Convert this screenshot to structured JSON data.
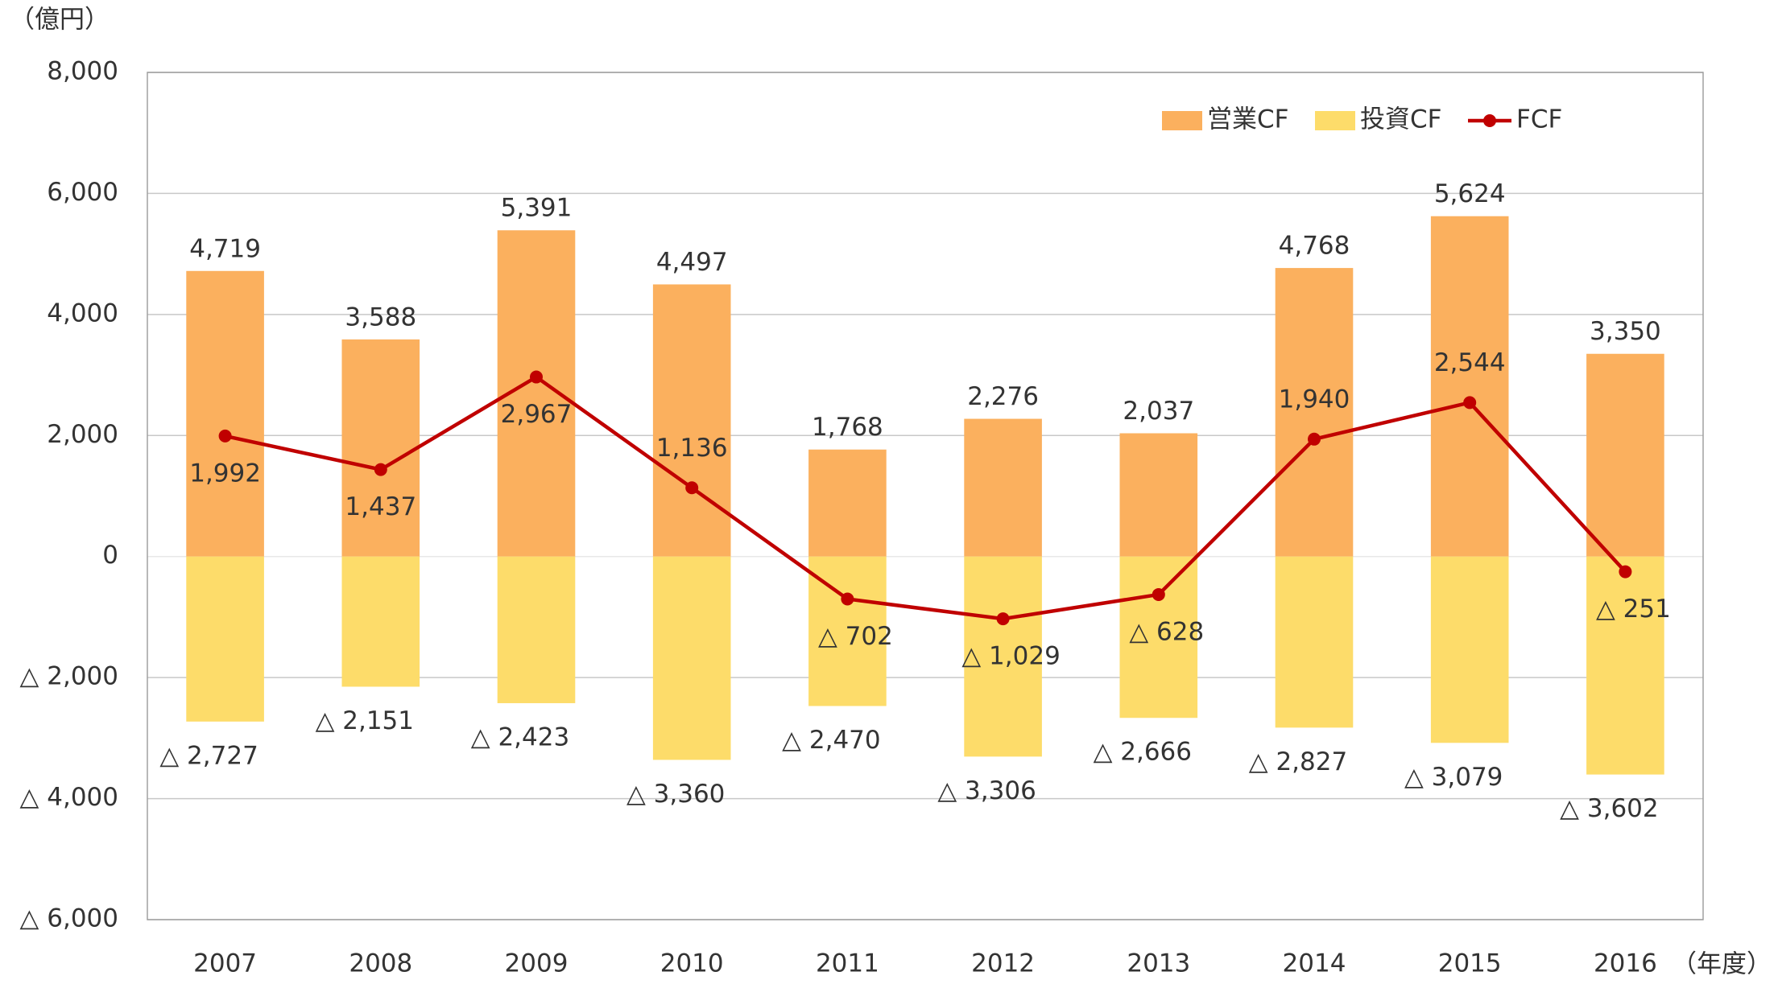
{
  "chart_data": {
    "type": "bar",
    "stacked": true,
    "y_label": "（億円）",
    "x_label": "（年度）",
    "categories": [
      "2007",
      "2008",
      "2009",
      "2010",
      "2011",
      "2012",
      "2013",
      "2014",
      "2015",
      "2016"
    ],
    "series": [
      {
        "name": "営業CF",
        "color": "#fbb05e",
        "type": "bar",
        "values": [
          4719,
          3588,
          5391,
          4497,
          1768,
          2276,
          2037,
          4768,
          5624,
          3350
        ],
        "value_labels": [
          "4,719",
          "3,588",
          "5,391",
          "4,497",
          "1,768",
          "2,276",
          "2,037",
          "4,768",
          "5,624",
          "3,350"
        ]
      },
      {
        "name": "投資CF",
        "color": "#fddc6a",
        "type": "bar",
        "values": [
          -2727,
          -2151,
          -2423,
          -3360,
          -2470,
          -3306,
          -2666,
          -2827,
          -3079,
          -3602
        ],
        "value_labels": [
          "△ 2,727",
          "△ 2,151",
          "△ 2,423",
          "△ 3,360",
          "△ 2,470",
          "△ 3,306",
          "△ 2,666",
          "△ 2,827",
          "△ 3,079",
          "△ 3,602"
        ]
      },
      {
        "name": "FCF",
        "color": "#c00000",
        "type": "line",
        "values": [
          1992,
          1437,
          2967,
          1136,
          -702,
          -1029,
          -628,
          1940,
          2544,
          -251
        ],
        "value_labels": [
          "1,992",
          "1,437",
          "2,967",
          "1,136",
          "△ 702",
          "△ 1,029",
          "△ 628",
          "1,940",
          "2,544",
          "△ 251"
        ]
      }
    ],
    "ylim": [
      -6000,
      8000
    ],
    "yticks": [
      {
        "value": -6000,
        "label": "△ 6,000"
      },
      {
        "value": -4000,
        "label": "△ 4,000"
      },
      {
        "value": -2000,
        "label": "△ 2,000"
      },
      0,
      {
        "value": 2000,
        "label": "2,000"
      },
      {
        "value": 4000,
        "label": "4,000"
      },
      {
        "value": 6000,
        "label": "6,000"
      },
      {
        "value": 8000,
        "label": "8,000"
      }
    ],
    "grid": true,
    "legend": "top-right"
  }
}
